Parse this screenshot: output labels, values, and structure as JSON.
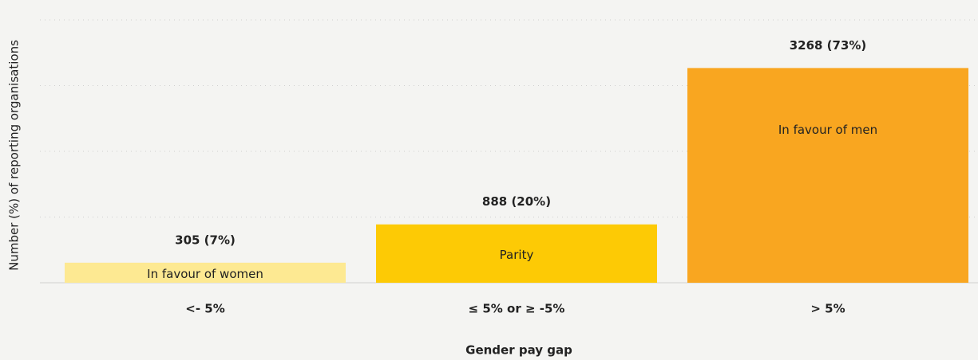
{
  "chart_data": {
    "type": "bar",
    "x_label": "Gender pay gap",
    "y_label": "Number (%) of reporting organisations",
    "categories": [
      "<- 5%",
      "≤ 5% or ≥ -5%",
      "> 5%"
    ],
    "values": [
      305,
      888,
      3268
    ],
    "value_labels": [
      "305 (7%)",
      "888 (20%)",
      "3268 (73%)"
    ],
    "bar_labels": [
      "In favour of women",
      "Parity",
      "In favour of men"
    ],
    "colors": [
      "#fde992",
      "#fdca05",
      "#f9a620"
    ],
    "ylim": [
      0,
      4000
    ],
    "yticks": [
      1000,
      2000,
      3000,
      4000
    ],
    "grid": true
  }
}
